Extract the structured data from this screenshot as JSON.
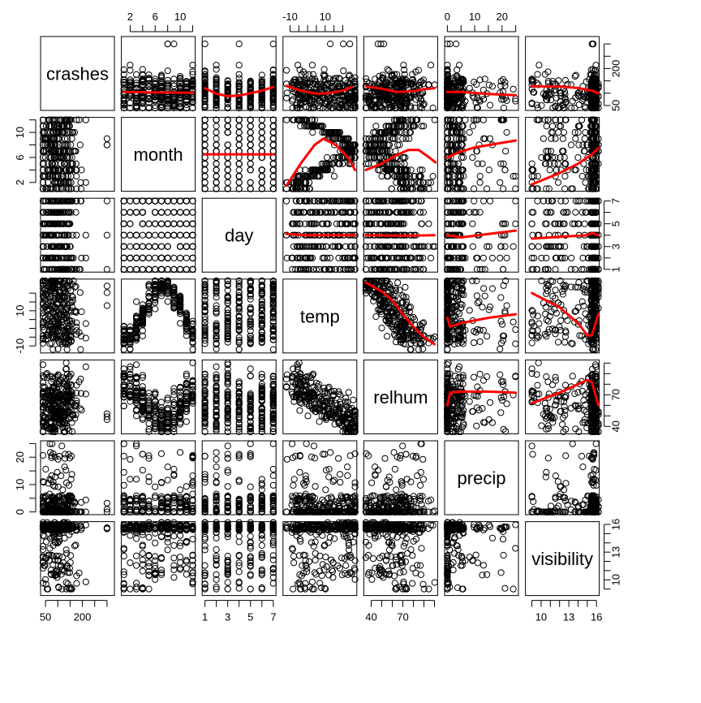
{
  "chart_data": {
    "type": "scatter",
    "variables": [
      "crashes",
      "month",
      "day",
      "temp",
      "relhum",
      "precip",
      "visibility"
    ],
    "panel_layout": "7x7 scatterplot matrix; variable names on the diagonal; lower panels plain scatter, upper panels scatter with red smoothing curve",
    "smoother_color": "#ff0000",
    "point_color": "#000000",
    "axes": {
      "crashes": {
        "range": [
          30,
          330
        ],
        "ticks": [
          50,
          200
        ],
        "tick_labels": [
          "50",
          "200"
        ],
        "y_ticks": [
          50,
          200
        ],
        "y_tick_labels": [
          "50",
          "200"
        ]
      },
      "month": {
        "range": [
          0.6,
          12.4
        ],
        "ticks": [
          2,
          6,
          10
        ],
        "tick_labels": [
          "2",
          "6",
          "10"
        ],
        "y_ticks": [
          2,
          6,
          10
        ],
        "y_tick_labels": [
          "2",
          "6",
          "10"
        ]
      },
      "day": {
        "range": [
          0.76,
          7.24
        ],
        "ticks": [
          1,
          3,
          5,
          7
        ],
        "tick_labels": [
          "1",
          "3",
          "5",
          "7"
        ],
        "y_ticks": [
          1,
          3,
          5,
          7
        ],
        "y_tick_labels": [
          "1",
          "3",
          "5",
          "7"
        ]
      },
      "temp": {
        "range": [
          -14,
          28
        ],
        "ticks": [
          -10,
          10
        ],
        "tick_labels": [
          "-10",
          "10"
        ],
        "y_ticks": [
          -10,
          10
        ],
        "y_tick_labels": [
          "-10",
          "10"
        ]
      },
      "relhum": {
        "range": [
          33,
          103
        ],
        "ticks": [
          40,
          70
        ],
        "tick_labels": [
          "40",
          "70"
        ],
        "y_ticks": [
          40,
          70
        ],
        "y_tick_labels": [
          "40",
          "70"
        ]
      },
      "precip": {
        "range": [
          -1,
          26
        ],
        "ticks": [
          0,
          10,
          20
        ],
        "tick_labels": [
          "0",
          "10",
          "20"
        ],
        "y_ticks": [
          0,
          10,
          20
        ],
        "y_tick_labels": [
          "0",
          "10",
          "20"
        ]
      },
      "visibility": {
        "range": [
          8.3,
          16.3
        ],
        "ticks": [
          10,
          13,
          16
        ],
        "tick_labels": [
          "10",
          "13",
          "16"
        ],
        "y_ticks": [
          10,
          13,
          16
        ],
        "y_tick_labels": [
          "10",
          "13",
          "16"
        ]
      }
    },
    "minor_ticks": {
      "crashes": [
        100,
        150,
        250,
        300
      ],
      "month": [
        4,
        8,
        12
      ],
      "day": [
        2,
        4,
        6
      ],
      "temp": [
        -5,
        0,
        5,
        15,
        20
      ],
      "relhum": [
        50,
        60,
        80,
        90,
        100
      ],
      "precip": [
        5,
        15,
        25
      ],
      "visibility": [
        9,
        11,
        12,
        14,
        15
      ]
    },
    "smoothers": {
      "crashes|month": [
        [
          1,
          105
        ],
        [
          6,
          103
        ],
        [
          12,
          102
        ]
      ],
      "crashes|day": [
        [
          1,
          120
        ],
        [
          2,
          98
        ],
        [
          3,
          88
        ],
        [
          4,
          90
        ],
        [
          5,
          100
        ],
        [
          6,
          110
        ],
        [
          7,
          125
        ]
      ],
      "crashes|temp": [
        [
          -12,
          130
        ],
        [
          -5,
          112
        ],
        [
          5,
          98
        ],
        [
          12,
          100
        ],
        [
          20,
          110
        ],
        [
          25,
          125
        ]
      ],
      "crashes|relhum": [
        [
          35,
          128
        ],
        [
          50,
          118
        ],
        [
          65,
          105
        ],
        [
          80,
          108
        ],
        [
          90,
          116
        ],
        [
          100,
          120
        ]
      ],
      "crashes|precip": [
        [
          0,
          105
        ],
        [
          5,
          105
        ],
        [
          15,
          97
        ],
        [
          25,
          92
        ]
      ],
      "crashes|visibility": [
        [
          9,
          128
        ],
        [
          12,
          127
        ],
        [
          14,
          121
        ],
        [
          15.5,
          110
        ],
        [
          16.2,
          100
        ]
      ],
      "month|day": [
        [
          1,
          6.5
        ],
        [
          7,
          6.5
        ]
      ],
      "month|temp": [
        [
          -12,
          1.5
        ],
        [
          -4,
          5
        ],
        [
          4,
          8
        ],
        [
          9,
          9
        ],
        [
          16,
          8
        ],
        [
          23,
          6
        ],
        [
          27,
          4
        ]
      ],
      "month|relhum": [
        [
          35,
          4
        ],
        [
          50,
          5
        ],
        [
          62,
          6.2
        ],
        [
          75,
          7.2
        ],
        [
          85,
          7.2
        ],
        [
          95,
          6
        ],
        [
          101,
          5.2
        ]
      ],
      "month|precip": [
        [
          0,
          6
        ],
        [
          4,
          6.8
        ],
        [
          10,
          7.6
        ],
        [
          18,
          8.2
        ],
        [
          25,
          8.7
        ]
      ],
      "month|visibility": [
        [
          9,
          1.7
        ],
        [
          12,
          3.5
        ],
        [
          14,
          5
        ],
        [
          15.5,
          6.5
        ],
        [
          16.2,
          7.5
        ]
      ],
      "day|temp": [
        [
          -12,
          4.1
        ],
        [
          0,
          4.0
        ],
        [
          10,
          4.0
        ],
        [
          27,
          4.0
        ]
      ],
      "day|relhum": [
        [
          35,
          4.0
        ],
        [
          70,
          3.95
        ],
        [
          100,
          4.0
        ]
      ],
      "day|precip": [
        [
          0,
          4.0
        ],
        [
          5,
          3.8
        ],
        [
          15,
          4.1
        ],
        [
          25,
          4.4
        ]
      ],
      "day|visibility": [
        [
          9,
          3.7
        ],
        [
          12,
          3.85
        ],
        [
          15,
          4.0
        ],
        [
          15.5,
          4.2
        ],
        [
          16.2,
          4.0
        ]
      ],
      "temp|relhum": [
        [
          35,
          26
        ],
        [
          50,
          21
        ],
        [
          60,
          16
        ],
        [
          70,
          8
        ],
        [
          80,
          1
        ],
        [
          90,
          -5
        ],
        [
          100,
          -9
        ]
      ],
      "temp|precip": [
        [
          0,
          6
        ],
        [
          1,
          1
        ],
        [
          5,
          3
        ],
        [
          15,
          6
        ],
        [
          25,
          8
        ]
      ],
      "temp|visibility": [
        [
          9,
          20
        ],
        [
          12,
          12
        ],
        [
          14,
          3
        ],
        [
          15,
          -4
        ],
        [
          15.5,
          -4
        ],
        [
          16.2,
          8
        ]
      ],
      "relhum|precip": [
        [
          0,
          60
        ],
        [
          1,
          72
        ],
        [
          5,
          73
        ],
        [
          15,
          73
        ],
        [
          25,
          72
        ]
      ],
      "relhum|visibility": [
        [
          9,
          62
        ],
        [
          12,
          72
        ],
        [
          14,
          80
        ],
        [
          15,
          84
        ],
        [
          15.5,
          82
        ],
        [
          16.2,
          60
        ]
      ]
    }
  }
}
